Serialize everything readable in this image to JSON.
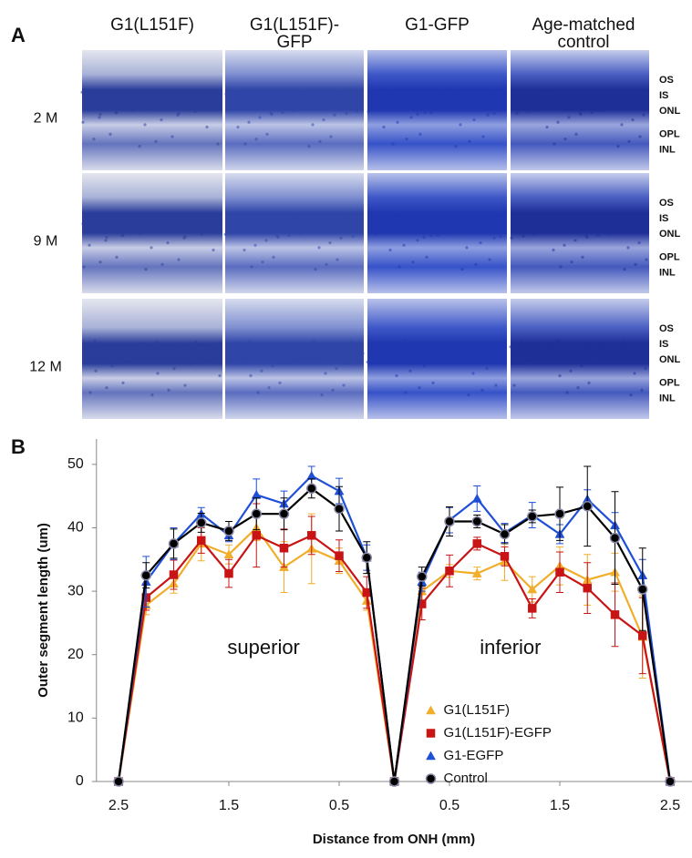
{
  "panel_a": {
    "label": "A",
    "columns": [
      [
        "G1(L151F)"
      ],
      [
        "G1(L151F)-",
        "GFP"
      ],
      [
        "G1-GFP"
      ],
      [
        "Age-matched",
        "control"
      ]
    ],
    "rows": [
      {
        "label": "2 M",
        "layers": [
          "OS",
          "IS",
          "ONL",
          "OPL",
          "INL"
        ]
      },
      {
        "label": "9 M",
        "layers": [
          "OS",
          "IS",
          "ONL",
          "OPL",
          "INL"
        ]
      },
      {
        "label": "12 M",
        "layers": [
          "OS",
          "IS",
          "ONL",
          "OPL",
          "INL"
        ]
      }
    ]
  },
  "chart_data": {
    "type": "line",
    "panel_label": "B",
    "x_label": "Distance from ONH (mm)",
    "y_label": "Outer segment length (um)",
    "annotations": [
      "superior",
      "inferior"
    ],
    "x": [
      -2.5,
      -2.25,
      -2,
      -1.75,
      -1.5,
      -1.25,
      -1,
      -0.75,
      -0.5,
      -0.25,
      0,
      0.25,
      0.5,
      0.75,
      1,
      1.25,
      1.5,
      1.75,
      2,
      2.25,
      2.5
    ],
    "xlim": [
      -2.7,
      2.7
    ],
    "xticks": [
      {
        "value": -2.5,
        "label": "2.5"
      },
      {
        "value": -1.5,
        "label": "1.5"
      },
      {
        "value": -0.5,
        "label": "0.5"
      },
      {
        "value": 0.5,
        "label": "0.5"
      },
      {
        "value": 1.5,
        "label": "1.5"
      },
      {
        "value": 2.5,
        "label": "2.5"
      }
    ],
    "ylim": [
      0,
      54
    ],
    "yticks": [
      0,
      10,
      20,
      30,
      40,
      50
    ],
    "legend": "lower-center",
    "series": [
      {
        "name": "G1(L151F)",
        "color": "#f0ae2a",
        "marker": "triangle",
        "values": [
          0,
          27.8,
          31.2,
          37.5,
          35.8,
          40,
          33.8,
          36.7,
          34.8,
          28.5,
          0,
          30,
          33.2,
          32.8,
          34.7,
          30.3,
          34,
          31.8,
          33,
          22.8,
          0
        ],
        "errors": [
          0,
          1.5,
          1.5,
          2.7,
          1.5,
          2,
          4,
          5.5,
          2,
          1.5,
          0,
          2,
          1,
          1,
          3,
          2,
          3,
          4,
          3,
          6.5,
          0
        ]
      },
      {
        "name": "G1(L151F)-EGFP",
        "color": "#c81414",
        "marker": "square",
        "values": [
          0,
          29,
          32.6,
          38,
          32.8,
          38.8,
          36.8,
          38.8,
          35.6,
          29.8,
          0,
          28,
          33.2,
          37.5,
          35.5,
          27.3,
          33,
          30.5,
          26.3,
          23,
          0
        ],
        "errors": [
          0,
          2,
          2.3,
          2,
          2.2,
          5,
          3,
          3,
          2.5,
          2.5,
          0,
          2.5,
          2.5,
          1,
          1.5,
          1.5,
          3.2,
          4,
          5,
          6,
          0
        ]
      },
      {
        "name": "G1-EGFP",
        "color": "#1f4fd6",
        "marker": "triangle",
        "values": [
          0,
          31.5,
          37.5,
          42.2,
          38.8,
          45.2,
          43.8,
          48.2,
          45.8,
          35.3,
          0,
          31.5,
          41.2,
          44.6,
          39.2,
          42,
          39,
          44.5,
          40.4,
          32.5,
          0
        ],
        "errors": [
          0,
          4,
          2.5,
          1,
          1,
          2.5,
          2,
          1.5,
          2,
          2,
          0,
          1.5,
          2,
          2,
          1.5,
          2,
          1.5,
          1.5,
          2,
          2.5,
          0
        ]
      },
      {
        "name": "Control",
        "color": "#000000",
        "marker": "circle",
        "values": [
          0,
          32.5,
          37.5,
          40.8,
          39.5,
          42.2,
          42.2,
          46.2,
          43,
          35.3,
          0,
          32.3,
          41,
          41,
          39,
          41.8,
          42.2,
          43.4,
          38.4,
          30.3,
          0
        ],
        "errors": [
          0,
          2,
          2.3,
          1.5,
          1.5,
          2.5,
          2.5,
          1.5,
          3.5,
          2.5,
          0,
          1.5,
          2.3,
          1,
          1.5,
          1,
          4.2,
          6.3,
          7.3,
          6.5,
          0
        ]
      }
    ]
  }
}
